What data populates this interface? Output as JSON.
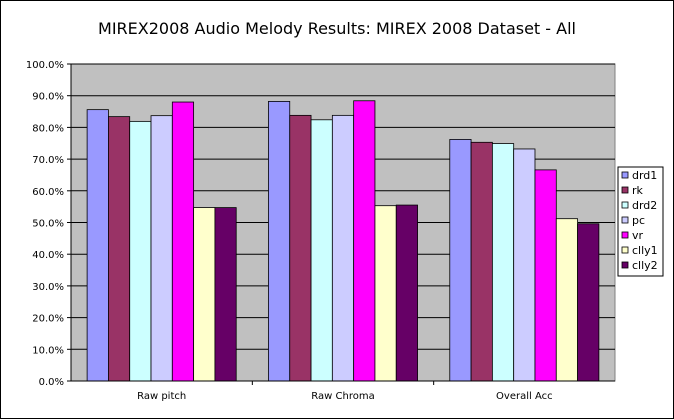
{
  "chart_data": {
    "type": "bar",
    "title": "MIREX2008 Audio Melody Results: MIREX 2008 Dataset - All",
    "xlabel": "",
    "ylabel": "",
    "ylim": [
      0,
      100
    ],
    "yticks": [
      "0.0%",
      "10.0%",
      "20.0%",
      "30.0%",
      "40.0%",
      "50.0%",
      "60.0%",
      "70.0%",
      "80.0%",
      "90.0%",
      "100.0%"
    ],
    "grid": true,
    "legend_position": "right",
    "categories": [
      "Raw pitch",
      "Raw Chroma",
      "Overall Acc"
    ],
    "series": [
      {
        "name": "drd1",
        "color": "#9999ff",
        "values": [
          85.6,
          88.2,
          76.2
        ]
      },
      {
        "name": "rk",
        "color": "#993366",
        "values": [
          83.4,
          83.8,
          75.3
        ]
      },
      {
        "name": "drd2",
        "color": "#ccffff",
        "values": [
          81.9,
          82.4,
          74.9
        ]
      },
      {
        "name": "pc",
        "color": "#ccccff",
        "values": [
          83.7,
          83.8,
          73.2
        ]
      },
      {
        "name": "vr",
        "color": "#ff00ff",
        "values": [
          88.0,
          88.4,
          66.6
        ]
      },
      {
        "name": "clly1",
        "color": "#ffffcc",
        "values": [
          54.7,
          55.3,
          51.2
        ]
      },
      {
        "name": "clly2",
        "color": "#660066",
        "values": [
          54.7,
          55.5,
          49.6
        ]
      }
    ],
    "plot_background": "#c0c0c0"
  }
}
